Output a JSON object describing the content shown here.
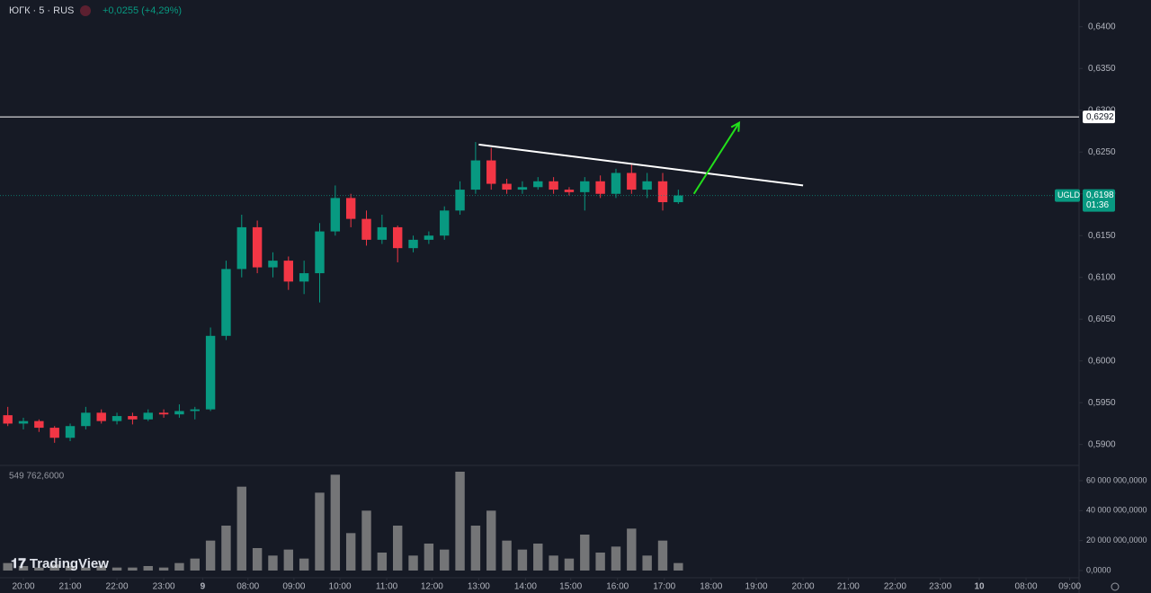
{
  "header": {
    "symbol": "ЮГК · 5 · RUS",
    "change": "+0,0255 (+4,29%)",
    "volume_label": "549 762,6000",
    "brand": "TradingView"
  },
  "chart_data": [
    {
      "type": "candlestick",
      "up_color": "#089981",
      "down_color": "#f23645",
      "xlim": [
        -0.5,
        68.7
      ],
      "ylim": [
        0.5876,
        0.6432
      ],
      "open": [
        0.5935,
        0.5925,
        0.5928,
        0.592,
        0.5908,
        0.5922,
        0.5938,
        0.5928,
        0.5934,
        0.593,
        0.5938,
        0.5936,
        0.594,
        0.5942,
        0.603,
        0.611,
        0.616,
        0.6112,
        0.612,
        0.6095,
        0.6105,
        0.6155,
        0.6195,
        0.617,
        0.6145,
        0.616,
        0.6135,
        0.6145,
        0.615,
        0.618,
        0.6205,
        0.624,
        0.6212,
        0.6205,
        0.6208,
        0.6215,
        0.6205,
        0.6202,
        0.6215,
        0.62,
        0.6225,
        0.6205,
        0.6215,
        0.619
      ],
      "high": [
        0.5945,
        0.5932,
        0.593,
        0.5922,
        0.5925,
        0.5945,
        0.5942,
        0.5938,
        0.5938,
        0.5942,
        0.5942,
        0.5948,
        0.5945,
        0.604,
        0.612,
        0.6175,
        0.6168,
        0.613,
        0.6125,
        0.612,
        0.6165,
        0.621,
        0.62,
        0.618,
        0.6175,
        0.6162,
        0.615,
        0.6155,
        0.6185,
        0.6215,
        0.6262,
        0.6255,
        0.6218,
        0.6215,
        0.622,
        0.622,
        0.6208,
        0.622,
        0.6222,
        0.623,
        0.6235,
        0.6225,
        0.6225,
        0.6205
      ],
      "low": [
        0.5922,
        0.5918,
        0.5915,
        0.5902,
        0.5904,
        0.5918,
        0.5925,
        0.5924,
        0.5924,
        0.5928,
        0.5932,
        0.5932,
        0.593,
        0.594,
        0.6025,
        0.61,
        0.6105,
        0.61,
        0.6085,
        0.608,
        0.607,
        0.615,
        0.616,
        0.6138,
        0.614,
        0.6118,
        0.613,
        0.614,
        0.6145,
        0.6175,
        0.62,
        0.6205,
        0.62,
        0.62,
        0.6205,
        0.62,
        0.6198,
        0.618,
        0.6195,
        0.6195,
        0.62,
        0.6195,
        0.618,
        0.6188
      ],
      "close": [
        0.5925,
        0.5928,
        0.592,
        0.5908,
        0.5922,
        0.5938,
        0.5928,
        0.5934,
        0.593,
        0.5938,
        0.5936,
        0.594,
        0.5942,
        0.603,
        0.611,
        0.616,
        0.6112,
        0.612,
        0.6095,
        0.6105,
        0.6155,
        0.6195,
        0.617,
        0.6145,
        0.616,
        0.6135,
        0.6145,
        0.615,
        0.618,
        0.6205,
        0.624,
        0.6212,
        0.6205,
        0.6208,
        0.6215,
        0.6205,
        0.6202,
        0.6215,
        0.62,
        0.6225,
        0.6205,
        0.6215,
        0.619,
        0.6198
      ],
      "yticks": [
        {
          "value": 0.59,
          "label": "0,5900"
        },
        {
          "value": 0.595,
          "label": "0,5950"
        },
        {
          "value": 0.6,
          "label": "0,6000"
        },
        {
          "value": 0.605,
          "label": "0,6050"
        },
        {
          "value": 0.61,
          "label": "0,6100"
        },
        {
          "value": 0.615,
          "label": "0,6150"
        },
        {
          "value": 0.62,
          "label": "0,6200"
        },
        {
          "value": 0.625,
          "label": "0,6250"
        },
        {
          "value": 0.63,
          "label": "0,6300"
        },
        {
          "value": 0.635,
          "label": "0,6350"
        },
        {
          "value": 0.64,
          "label": "0,6400"
        }
      ],
      "xticks": [
        {
          "value": 1,
          "label": "20:00"
        },
        {
          "value": 4,
          "label": "21:00"
        },
        {
          "value": 7,
          "label": "22:00"
        },
        {
          "value": 10,
          "label": "23:00"
        },
        {
          "value": 12.5,
          "label": "9"
        },
        {
          "value": 15.4,
          "label": "08:00"
        },
        {
          "value": 18.35,
          "label": "09:00"
        },
        {
          "value": 21.3,
          "label": "10:00"
        },
        {
          "value": 24.3,
          "label": "11:00"
        },
        {
          "value": 27.2,
          "label": "12:00"
        },
        {
          "value": 30.2,
          "label": "13:00"
        },
        {
          "value": 33.2,
          "label": "14:00"
        },
        {
          "value": 36.1,
          "label": "15:00"
        },
        {
          "value": 39.1,
          "label": "16:00"
        },
        {
          "value": 42.1,
          "label": "17:00"
        },
        {
          "value": 45.1,
          "label": "18:00"
        },
        {
          "value": 48,
          "label": "19:00"
        },
        {
          "value": 51,
          "label": "20:00"
        },
        {
          "value": 53.9,
          "label": "21:00"
        },
        {
          "value": 56.9,
          "label": "22:00"
        },
        {
          "value": 59.8,
          "label": "23:00"
        },
        {
          "value": 62.3,
          "label": "10"
        },
        {
          "value": 65.3,
          "label": "08:00"
        },
        {
          "value": 68.1,
          "label": "09:00"
        }
      ],
      "levels": [
        {
          "value": 0.6292,
          "label": "0,6292",
          "color": "#ffffff"
        }
      ],
      "last": {
        "value": 0.6198,
        "label": "0,6198",
        "ticker": "UGLD",
        "countdown": "01:36",
        "color": "#089981"
      },
      "drawings": [
        {
          "color": "#ffffff",
          "x": [
            30.2,
            51
          ],
          "y": [
            0.6259,
            0.621
          ]
        },
        {
          "color": "#22e01b",
          "x": [
            44,
            46.9
          ],
          "y": [
            0.62,
            0.6285
          ],
          "arrow": true
        }
      ]
    },
    {
      "type": "bar",
      "color": "#8c8c8c",
      "xlim": [
        -0.5,
        68.7
      ],
      "ylim": [
        -6000000,
        69000000
      ],
      "values": [
        5000000,
        3000000,
        2000000,
        4000000,
        3000000,
        2000000,
        3000000,
        2000000,
        2000000,
        3000000,
        2000000,
        5000000,
        8000000,
        20000000,
        30000000,
        56000000,
        15000000,
        10000000,
        14000000,
        8000000,
        52000000,
        64000000,
        25000000,
        40000000,
        12000000,
        30000000,
        10000000,
        18000000,
        14000000,
        66000000,
        30000000,
        40000000,
        20000000,
        14000000,
        18000000,
        10000000,
        8000000,
        24000000,
        12000000,
        16000000,
        28000000,
        10000000,
        20000000,
        5000000
      ],
      "yticks": [
        {
          "value": 0,
          "label": "0,0000"
        },
        {
          "value": 20000000,
          "label": "20 000 000,0000"
        },
        {
          "value": 40000000,
          "label": "40 000 000,0000"
        },
        {
          "value": 60000000,
          "label": "60 000 000,0000"
        }
      ]
    }
  ]
}
